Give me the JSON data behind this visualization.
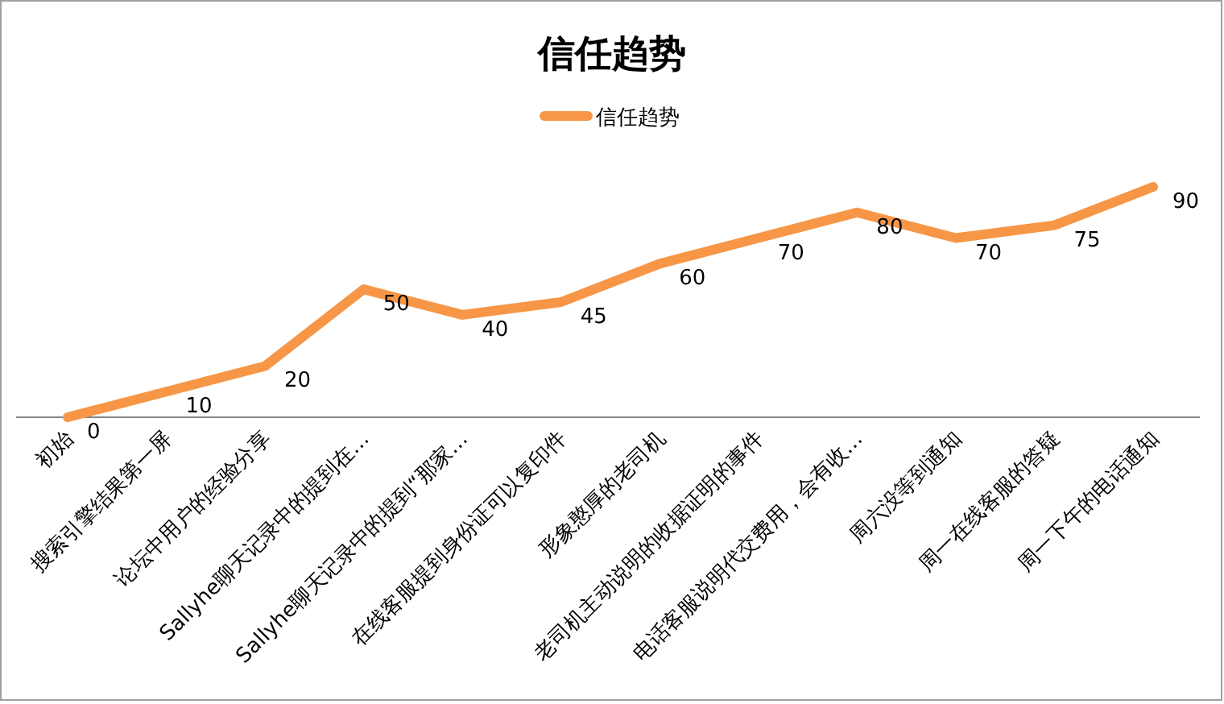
{
  "chart_data": {
    "type": "line",
    "title": "信任趋势",
    "categories": [
      "初始",
      "搜索引擎结果第一屏",
      "论坛中用户的经验分享",
      "Sallyhe聊天记录中的提到在…",
      "Sallyhe聊天记录中的提到“那家…",
      "在线客服提到身份证可以复印件",
      "形象憨厚的老司机",
      "老司机主动说明的收据证明的事件",
      "电话客服说明代交费用，会有收…",
      "周六没等到通知",
      "周一在线客服的答疑",
      "周一下午的电话通知"
    ],
    "series": [
      {
        "name": "信任趋势",
        "color": "#f79646",
        "values": [
          0,
          10,
          20,
          50,
          40,
          45,
          60,
          70,
          80,
          70,
          75,
          90
        ]
      }
    ],
    "data_labels": true,
    "legend": "top"
  }
}
